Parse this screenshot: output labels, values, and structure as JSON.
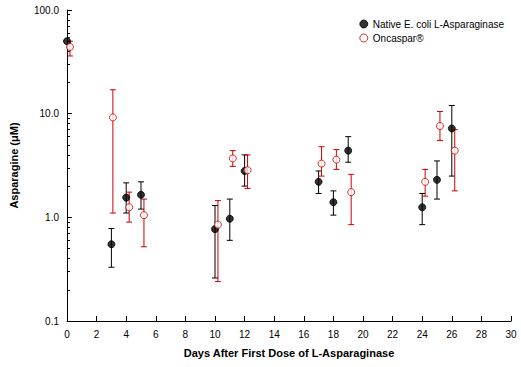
{
  "chart_data": {
    "type": "scatter",
    "x_label": "Days After First Dose of L-Asparaginase",
    "y_label": "Asparagine (μM)",
    "log": "y",
    "grid": false,
    "legend": "top-right",
    "xlim": [
      0,
      30
    ],
    "xticks": [
      0,
      2,
      4,
      6,
      8,
      10,
      12,
      14,
      16,
      18,
      20,
      22,
      24,
      26,
      28,
      30
    ],
    "ylim": [
      0.1,
      100
    ],
    "yticks": [
      0.1,
      {
        "value": 1,
        "label": "1.0"
      },
      {
        "value": 10,
        "label": "10.0"
      },
      {
        "value": 100,
        "label": "100.0"
      }
    ],
    "series": [
      {
        "name": "Native E. coli L-Asparaginase",
        "color": "#000000",
        "marker": "filled_circle",
        "x": [
          0,
          3,
          4,
          5,
          10,
          11,
          12,
          17,
          18,
          19,
          24,
          25,
          26
        ],
        "values": [
          50,
          0.55,
          1.55,
          1.65,
          0.77,
          0.97,
          2.8,
          2.2,
          1.4,
          4.4,
          1.25,
          2.3,
          7.2
        ],
        "error_low": [
          46,
          0.33,
          1.1,
          1.2,
          0.26,
          0.6,
          2.0,
          1.7,
          1.05,
          3.4,
          0.85,
          1.5,
          2.5
        ],
        "error_high": [
          54,
          0.78,
          2.15,
          2.2,
          1.3,
          1.5,
          4.0,
          2.8,
          1.8,
          6.0,
          1.7,
          3.5,
          12
        ]
      },
      {
        "name": "Oncaspar®",
        "color": "#cc0000",
        "marker": "open_circle",
        "x": [
          0.2,
          3.1,
          4.2,
          5.2,
          10.2,
          11.2,
          12.2,
          17.2,
          18.2,
          19.2,
          24.2,
          25.2,
          26.2
        ],
        "values": [
          44,
          9.2,
          1.25,
          1.05,
          0.85,
          3.7,
          2.85,
          3.3,
          3.6,
          1.75,
          2.2,
          7.6,
          4.4
        ],
        "error_low": [
          36,
          1.1,
          0.9,
          0.52,
          0.24,
          3.1,
          1.9,
          2.5,
          2.9,
          0.85,
          1.6,
          5.5,
          1.8
        ],
        "error_high": [
          50,
          17,
          1.75,
          1.5,
          1.45,
          4.4,
          4.0,
          4.8,
          4.5,
          2.6,
          2.9,
          10.5,
          7.0
        ]
      }
    ]
  }
}
